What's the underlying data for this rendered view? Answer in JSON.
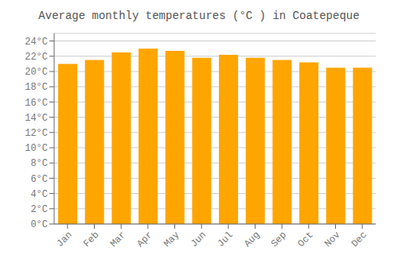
{
  "chart_data": {
    "type": "bar",
    "title": "Average monthly temperatures (°C ) in Coatepeque",
    "categories": [
      "Jan",
      "Feb",
      "Mar",
      "Apr",
      "May",
      "Jun",
      "Jul",
      "Aug",
      "Sep",
      "Oct",
      "Nov",
      "Dec"
    ],
    "values": [
      21.0,
      21.5,
      22.5,
      23.0,
      22.7,
      21.8,
      22.2,
      21.8,
      21.5,
      21.2,
      20.5,
      20.5
    ],
    "color": "#FFA500",
    "ylim": [
      0,
      25
    ],
    "yticks": [
      {
        "value": 0,
        "label": "0°C"
      },
      {
        "value": 2,
        "label": "2°C"
      },
      {
        "value": 4,
        "label": "4°C"
      },
      {
        "value": 6,
        "label": "6°C"
      },
      {
        "value": 8,
        "label": "8°C"
      },
      {
        "value": 10,
        "label": "10°C"
      },
      {
        "value": 12,
        "label": "12°C"
      },
      {
        "value": 14,
        "label": "14°C"
      },
      {
        "value": 16,
        "label": "16°C"
      },
      {
        "value": 18,
        "label": "18°C"
      },
      {
        "value": 20,
        "label": "20°C"
      },
      {
        "value": 22,
        "label": "22°C"
      },
      {
        "value": 24,
        "label": "24°C"
      }
    ],
    "grid": true
  }
}
